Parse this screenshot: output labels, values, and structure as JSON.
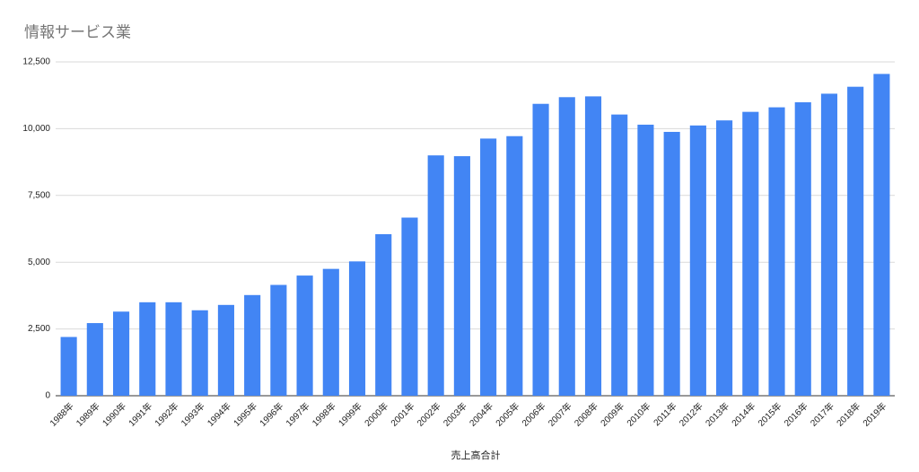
{
  "chart_data": {
    "type": "bar",
    "title": "情報サービス業",
    "x_label": "売上高合計",
    "categories": [
      "1988年",
      "1989年",
      "1990年",
      "1991年",
      "1992年",
      "1993年",
      "1994年",
      "1995年",
      "1996年",
      "1997年",
      "1998年",
      "1999年",
      "2000年",
      "2001年",
      "2002年",
      "2003年",
      "2004年",
      "2005年",
      "2006年",
      "2007年",
      "2008年",
      "2009年",
      "2010年",
      "2011年",
      "2012年",
      "2013年",
      "2014年",
      "2015年",
      "2016年",
      "2017年",
      "2018年",
      "2019年"
    ],
    "values": [
      2200,
      2720,
      3150,
      3500,
      3500,
      3200,
      3400,
      3770,
      4150,
      4500,
      4750,
      5030,
      6050,
      6670,
      9000,
      8970,
      9630,
      9720,
      10930,
      11180,
      11210,
      10530,
      10150,
      9880,
      10120,
      10310,
      10630,
      10800,
      10990,
      11310,
      11570,
      12050
    ],
    "color": "#4285f4",
    "ylim": [
      0,
      12500
    ],
    "yticks": [
      0,
      {
        "value": 2500,
        "label": "2,500"
      },
      {
        "value": 5000,
        "label": "5,000"
      },
      {
        "value": 7500,
        "label": "7,500"
      },
      {
        "value": 10000,
        "label": "10,000"
      },
      {
        "value": 12500,
        "label": "12,500"
      }
    ],
    "grid": true
  }
}
